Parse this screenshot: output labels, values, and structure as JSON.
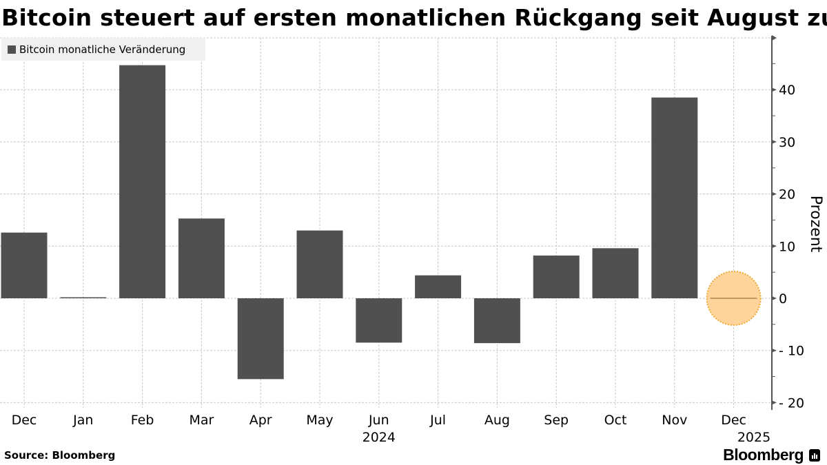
{
  "title": "Bitcoin steuert auf ersten monatlichen Rückgang seit August zu",
  "legend": {
    "label": "Bitcoin monatliche Veränderung",
    "color": "#505050"
  },
  "source": "Source: Bloomberg",
  "brand": "Bloomberg",
  "y_axis_label": "Prozent",
  "colors": {
    "bar": "#505050",
    "highlight_fill": "#ffd49a",
    "highlight_stroke": "#f0a830",
    "grid": "#c8c8c8",
    "axis": "#555555"
  },
  "chart_data": {
    "type": "bar",
    "title": "Bitcoin steuert auf ersten monatlichen Rückgang seit August zu",
    "xlabel": "",
    "ylabel": "Prozent",
    "categories": [
      "Dec",
      "Jan",
      "Feb",
      "Mar",
      "Apr",
      "May",
      "Jun",
      "Jul",
      "Aug",
      "Sep",
      "Oct",
      "Nov",
      "Dec"
    ],
    "year_labels": [
      {
        "label": "2024",
        "at_index": 6
      },
      {
        "label": "2025",
        "at_index": 12
      }
    ],
    "series": [
      {
        "name": "Bitcoin monatliche Veränderung",
        "values": [
          12.6,
          0.1,
          44.7,
          15.3,
          -15.5,
          13.0,
          -8.5,
          4.4,
          -8.6,
          8.2,
          9.6,
          38.5,
          0.0
        ]
      }
    ],
    "highlight_index": 12,
    "yticks": [
      -20,
      -10,
      0,
      10,
      20,
      30,
      40
    ],
    "ylim": [
      -21,
      50
    ],
    "grid": true,
    "legend_position": "top-left",
    "y_axis_position": "right"
  }
}
